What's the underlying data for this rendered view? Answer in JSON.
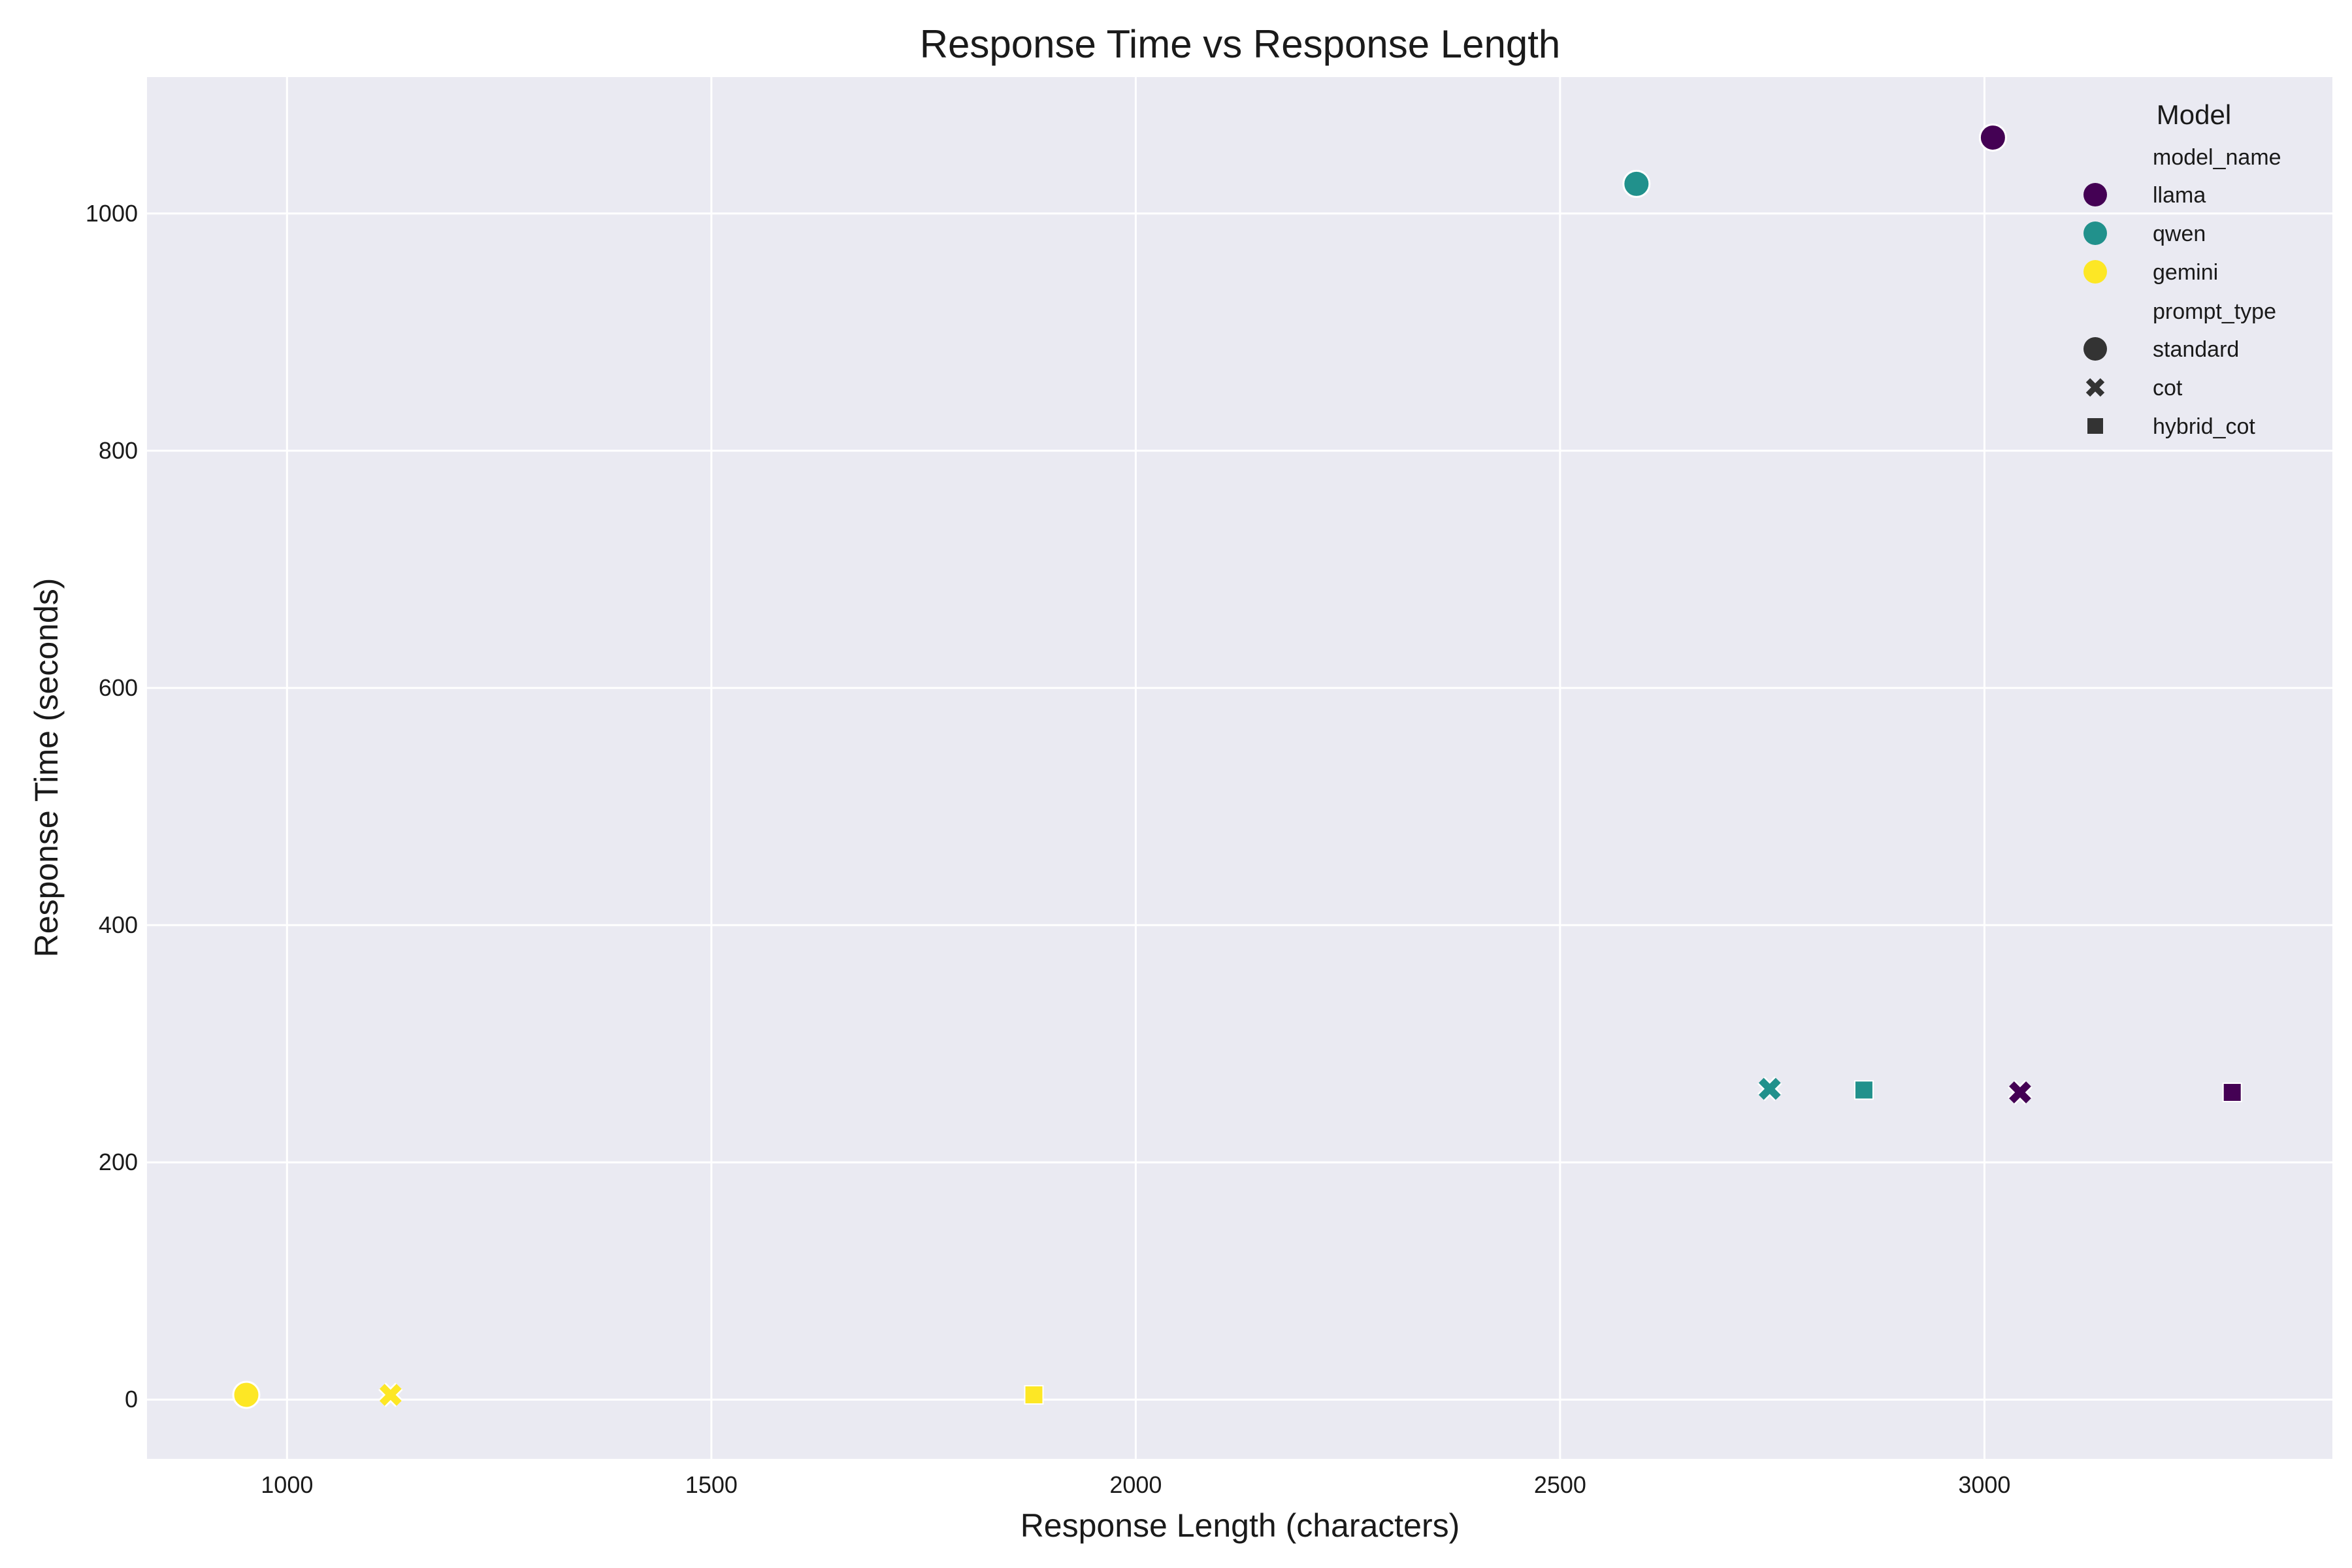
{
  "chart_data": {
    "type": "scatter",
    "title": "Response Time vs Response Length",
    "xlabel": "Response Length (characters)",
    "ylabel": "Response Time (seconds)",
    "xlim": [
      835,
      3410
    ],
    "ylim": [
      -50,
      1115
    ],
    "xticks": [
      1000,
      1500,
      2000,
      2500,
      3000
    ],
    "yticks": [
      0,
      200,
      400,
      600,
      800,
      1000
    ],
    "grid": true,
    "background": "#eaeaf2",
    "legend": {
      "placement": "top-right",
      "title": "Model",
      "hue_header": "model_name",
      "style_header": "prompt_type",
      "hue_entries": [
        {
          "label": "llama",
          "color": "#440154"
        },
        {
          "label": "qwen",
          "color": "#21918c"
        },
        {
          "label": "gemini",
          "color": "#fde725"
        }
      ],
      "style_entries": [
        {
          "label": "standard",
          "marker": "circle"
        },
        {
          "label": "cot",
          "marker": "x"
        },
        {
          "label": "hybrid_cot",
          "marker": "square"
        }
      ]
    },
    "points": [
      {
        "model_name": "llama",
        "prompt_type": "standard",
        "x": 3010,
        "y": 1064
      },
      {
        "model_name": "llama",
        "prompt_type": "cot",
        "x": 3042,
        "y": 259
      },
      {
        "model_name": "llama",
        "prompt_type": "hybrid_cot",
        "x": 3292,
        "y": 259
      },
      {
        "model_name": "qwen",
        "prompt_type": "standard",
        "x": 2590,
        "y": 1025
      },
      {
        "model_name": "qwen",
        "prompt_type": "cot",
        "x": 2747,
        "y": 262
      },
      {
        "model_name": "qwen",
        "prompt_type": "hybrid_cot",
        "x": 2858,
        "y": 261
      },
      {
        "model_name": "gemini",
        "prompt_type": "standard",
        "x": 952,
        "y": 4
      },
      {
        "model_name": "gemini",
        "prompt_type": "cot",
        "x": 1122,
        "y": 4
      },
      {
        "model_name": "gemini",
        "prompt_type": "hybrid_cot",
        "x": 1880,
        "y": 4
      }
    ]
  }
}
